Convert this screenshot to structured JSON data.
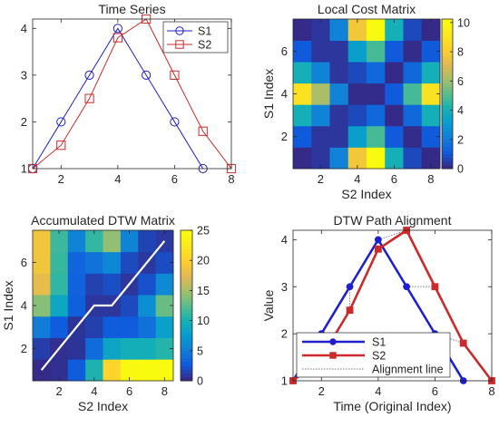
{
  "colors": {
    "s1": "#1f1fd2",
    "s2": "#cc2a2a",
    "path": "#ffffff",
    "align": "#777777",
    "axis": "#262626",
    "background": "#ffffff"
  },
  "chart_data": [
    {
      "type": "line",
      "title": "Time Series",
      "xlim": [
        1,
        8
      ],
      "ylim": [
        1,
        4.2
      ],
      "xticks": [
        2,
        4,
        6,
        8
      ],
      "yticks": [
        1,
        2,
        3,
        4
      ],
      "legend": "top-right",
      "series": [
        {
          "name": "S1",
          "marker": "circle",
          "x": [
            1,
            2,
            3,
            4,
            5,
            6,
            7
          ],
          "y": [
            1,
            2,
            3,
            4,
            3,
            2,
            1
          ]
        },
        {
          "name": "S2",
          "marker": "square",
          "x": [
            1,
            2,
            3,
            4,
            5,
            6,
            7,
            8
          ],
          "y": [
            1,
            1.5,
            2.5,
            3.8,
            4.2,
            3,
            1.8,
            1
          ]
        }
      ]
    },
    {
      "type": "heatmap",
      "title": "Local Cost Matrix",
      "xlabel": "S2 Index",
      "ylabel": "S1 Index",
      "xticks": [
        2,
        4,
        6,
        8
      ],
      "yticks": [
        2,
        4,
        6
      ],
      "colorbar_ticks": [
        0,
        2,
        4,
        6,
        8,
        10
      ],
      "clim": [
        0,
        10.24
      ],
      "rows": [
        1,
        2,
        3,
        4,
        5,
        6,
        7
      ],
      "cols": [
        1,
        2,
        3,
        4,
        5,
        6,
        7,
        8
      ],
      "values": [
        [
          0,
          0.25,
          2.25,
          7.84,
          10.24,
          4,
          0.64,
          0
        ],
        [
          1,
          0.25,
          0.25,
          3.24,
          4.84,
          1,
          0.04,
          1
        ],
        [
          4,
          2.25,
          0.25,
          0.64,
          1.44,
          0,
          1.44,
          4
        ],
        [
          9,
          6.25,
          2.25,
          0.04,
          0.04,
          1,
          4.84,
          9
        ],
        [
          4,
          2.25,
          0.25,
          0.64,
          1.44,
          0,
          1.44,
          4
        ],
        [
          1,
          0.25,
          0.25,
          3.24,
          4.84,
          1,
          0.04,
          1
        ],
        [
          0,
          0.25,
          2.25,
          7.84,
          10.24,
          4,
          0.64,
          0
        ]
      ]
    },
    {
      "type": "heatmap",
      "title": "Accumulated DTW Matrix",
      "xlabel": "S2 Index",
      "ylabel": "S1 Index",
      "xticks": [
        2,
        4,
        6,
        8
      ],
      "yticks": [
        2,
        4,
        6
      ],
      "colorbar_ticks": [
        0,
        5,
        10,
        15,
        20,
        25
      ],
      "clim": [
        0,
        25
      ],
      "rows": [
        1,
        2,
        3,
        4,
        5,
        6,
        7
      ],
      "cols": [
        1,
        2,
        3,
        4,
        5,
        6,
        7,
        8
      ],
      "values": [
        [
          0,
          0.25,
          2.5,
          10.3,
          20.6,
          24.6,
          25,
          25
        ],
        [
          1,
          0.25,
          0.5,
          3.7,
          8.6,
          9.6,
          9.6,
          10.6
        ],
        [
          5,
          2.5,
          0.5,
          1.1,
          2.6,
          2.6,
          4.0,
          8.0
        ],
        [
          14,
          8.8,
          2.8,
          0.6,
          0.6,
          1.6,
          6.4,
          13.0
        ],
        [
          18,
          11,
          3.0,
          1.2,
          1.8,
          0.6,
          2.0,
          6.0
        ],
        [
          19,
          11.3,
          3.2,
          4.2,
          5.9,
          1.6,
          0.7,
          1.7
        ],
        [
          19,
          11.5,
          5.5,
          11.1,
          14.4,
          5.6,
          1.3,
          0.7
        ]
      ],
      "path": [
        [
          1,
          1
        ],
        [
          2,
          2
        ],
        [
          3,
          3
        ],
        [
          4,
          4
        ],
        [
          5,
          4
        ],
        [
          6,
          5
        ],
        [
          7,
          6
        ],
        [
          8,
          7
        ]
      ]
    },
    {
      "type": "line",
      "title": "DTW Path Alignment",
      "xlabel": "Time (Original Index)",
      "ylabel": "Value",
      "xlim": [
        1,
        8
      ],
      "ylim": [
        1,
        4.2
      ],
      "xticks": [
        2,
        4,
        6,
        8
      ],
      "yticks": [
        1,
        2,
        3,
        4
      ],
      "legend": "bottom-left",
      "legend_entries": [
        "S1",
        "S2",
        "Alignment line"
      ],
      "series": [
        {
          "name": "S1",
          "marker": "circle",
          "x": [
            1,
            2,
            3,
            4,
            5,
            6,
            7
          ],
          "y": [
            1,
            2,
            3,
            4,
            3,
            2,
            1
          ]
        },
        {
          "name": "S2",
          "marker": "square",
          "x": [
            1,
            2,
            3,
            4,
            5,
            6,
            7,
            8
          ],
          "y": [
            1,
            1.5,
            2.5,
            3.8,
            4.2,
            3,
            1.8,
            1
          ]
        }
      ],
      "alignment_pairs": [
        [
          1,
          1
        ],
        [
          2,
          2
        ],
        [
          3,
          3
        ],
        [
          4,
          4
        ],
        [
          4,
          5
        ],
        [
          5,
          6
        ],
        [
          6,
          7
        ],
        [
          7,
          8
        ]
      ]
    }
  ]
}
